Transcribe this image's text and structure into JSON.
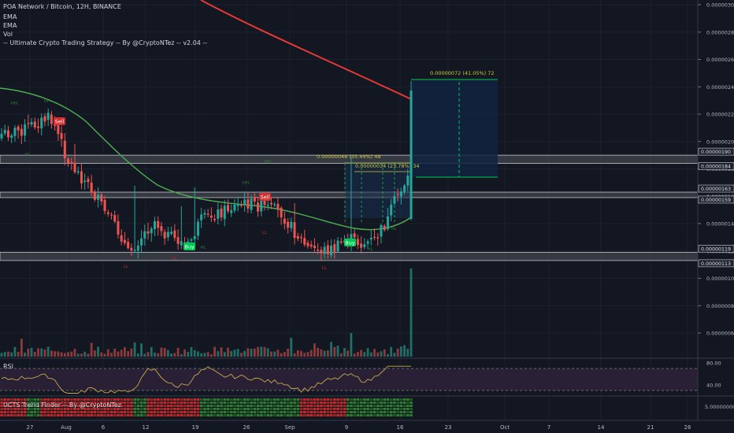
{
  "header": {
    "symbol_line": "POA Network / Bitcoin, 12H, BINANCE",
    "ema1": "EMA",
    "ema2": "EMA",
    "vol": "Vol",
    "strategy": "-- Ultimate Crypto Trading Strategy -- By @CryptoNTez -- v2.04 --"
  },
  "panes": {
    "rsi_label": "RSI",
    "ucts_label": "UCTS Trend Finder -- By @CryptoNTez"
  },
  "colors": {
    "background": "#131722",
    "bull": "#26a69a",
    "bear": "#ef5350",
    "ema_long": "#e53935",
    "ema_short": "#4caf50",
    "zone": "#787b86",
    "rsi_line": "#c8a84b",
    "rsi_band": "#2a2035",
    "measure": "#c9c93e",
    "target_box": "#12233f",
    "buy_label": "#00c853",
    "sell_label": "#d32f2f"
  },
  "chart_data": {
    "type": "candlestick",
    "price_axis": {
      "ticks": [
        "0.00000300",
        "0.00000280",
        "0.00000260",
        "0.00000240",
        "0.00000220",
        "0.00000200",
        "0.00000180",
        "0.00000160",
        "0.00000140",
        "0.00000120",
        "0.00000100",
        "0.00000080",
        "0.00000060"
      ],
      "range": [
        5.2e-07,
        3.03e-06
      ]
    },
    "price_labels": [
      "0.00000190",
      "0.00000184",
      "0.00000163",
      "0.00000159",
      "0.00000119",
      "0.00000113"
    ],
    "time_axis": [
      "27",
      "Aug",
      "6",
      "12",
      "19",
      "26",
      "Sep",
      "9",
      "16",
      "23",
      "Oct",
      "7",
      "14",
      "21",
      "26"
    ],
    "rsi_axis": [
      "80.00",
      "40.00"
    ],
    "ucts_axis": [
      "5.00000000"
    ],
    "zones": [
      {
        "top": 1.9e-06,
        "bottom": 1.84e-06
      },
      {
        "top": 1.63e-06,
        "bottom": 1.59e-06
      },
      {
        "top": 1.19e-06,
        "bottom": 1.13e-06
      }
    ],
    "measures": [
      {
        "text": "0.00000072 (41.05%) 72"
      },
      {
        "text": "0.00000048 (35.44%) 48"
      },
      {
        "text": "0.00000034 (23.78%) 34"
      }
    ],
    "signals": [
      {
        "type": "Sell",
        "text": "Sell"
      },
      {
        "type": "Buy",
        "text": "Buy"
      },
      {
        "type": "Sell",
        "text": "Sell"
      },
      {
        "type": "Buy",
        "text": "Buy"
      }
    ],
    "pivot_labels": [
      "HH",
      "HH",
      "LL",
      "HH",
      "HL",
      "HH",
      "LL",
      "HL",
      "HL",
      "LL",
      "HL",
      "LL"
    ]
  }
}
